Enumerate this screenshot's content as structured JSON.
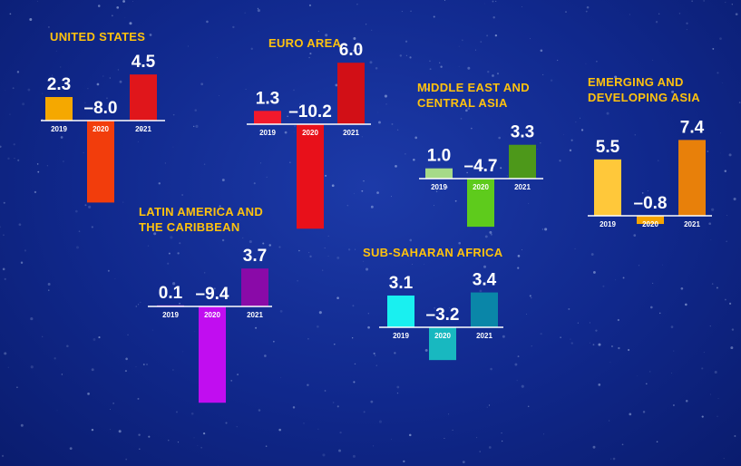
{
  "chart_data": [
    {
      "type": "bar",
      "title": "UNITED STATES",
      "categories": [
        "2019",
        "2020",
        "2021"
      ],
      "values": [
        2.3,
        -8.0,
        4.5
      ],
      "value_labels": [
        "2.3",
        "–8.0",
        "4.5"
      ],
      "colors": [
        "#f5a800",
        "#f23d0c",
        "#e0161b"
      ]
    },
    {
      "type": "bar",
      "title": "EURO AREA",
      "categories": [
        "2019",
        "2020",
        "2021"
      ],
      "values": [
        1.3,
        -10.2,
        6.0
      ],
      "value_labels": [
        "1.3",
        "–10.2",
        "6.0"
      ],
      "colors": [
        "#f2192c",
        "#e8101a",
        "#d20f16"
      ]
    },
    {
      "type": "bar",
      "title": "MIDDLE EAST AND CENTRAL ASIA",
      "categories": [
        "2019",
        "2020",
        "2021"
      ],
      "values": [
        1.0,
        -4.7,
        3.3
      ],
      "value_labels": [
        "1.0",
        "–4.7",
        "3.3"
      ],
      "colors": [
        "#a6da88",
        "#5ecb1c",
        "#4d981a"
      ]
    },
    {
      "type": "bar",
      "title": "EMERGING AND DEVELOPING ASIA",
      "categories": [
        "2019",
        "2020",
        "2021"
      ],
      "values": [
        5.5,
        -0.8,
        7.4
      ],
      "value_labels": [
        "5.5",
        "–0.8",
        "7.4"
      ],
      "colors": [
        "#ffc83a",
        "#f5a400",
        "#e8800a"
      ]
    },
    {
      "type": "bar",
      "title": "LATIN AMERICA AND THE CARIBBEAN",
      "categories": [
        "2019",
        "2020",
        "2021"
      ],
      "values": [
        0.1,
        -9.4,
        3.7
      ],
      "value_labels": [
        "0.1",
        "–9.4",
        "3.7"
      ],
      "colors": [
        "#c94fe0",
        "#c10df0",
        "#8a0aa8"
      ]
    },
    {
      "type": "bar",
      "title": "SUB-SAHARAN AFRICA",
      "categories": [
        "2019",
        "2020",
        "2021"
      ],
      "values": [
        3.1,
        -3.2,
        3.4
      ],
      "value_labels": [
        "3.1",
        "–3.2",
        "3.4"
      ],
      "colors": [
        "#19f0f0",
        "#18b8c0",
        "#0a86a8"
      ]
    }
  ]
}
